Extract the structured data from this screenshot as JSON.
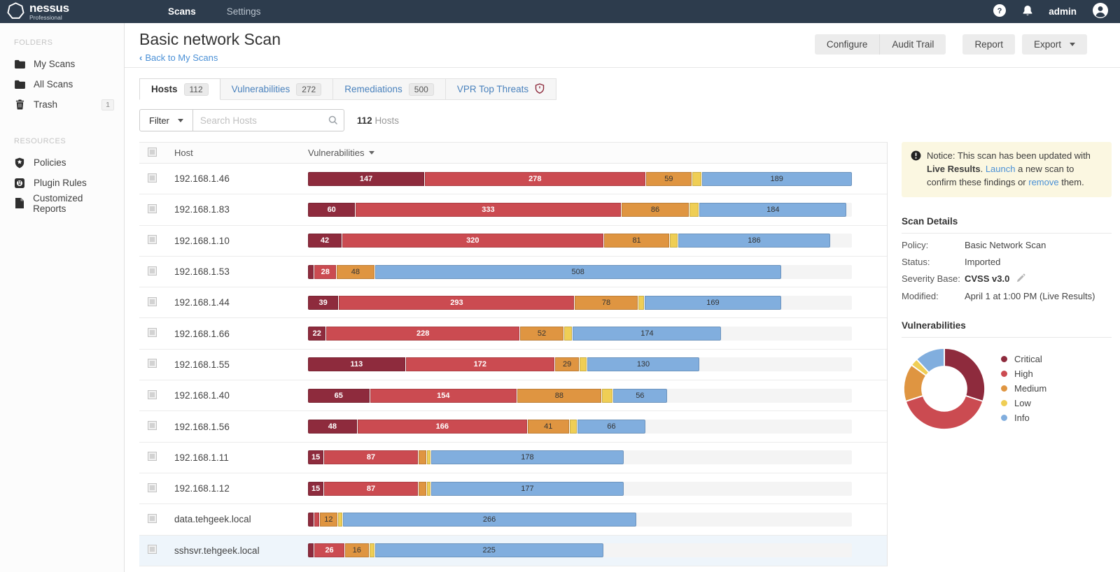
{
  "navbar": {
    "brand": {
      "name": "nessus",
      "sub": "Professional"
    },
    "items": [
      {
        "label": "Scans",
        "active": true
      },
      {
        "label": "Settings",
        "active": false
      }
    ],
    "user": "admin"
  },
  "sidebar": {
    "sections": [
      {
        "title": "FOLDERS",
        "items": [
          {
            "label": "My Scans",
            "icon": "folder",
            "badge": null
          },
          {
            "label": "All Scans",
            "icon": "folder",
            "badge": null
          },
          {
            "label": "Trash",
            "icon": "trash",
            "badge": "1"
          }
        ]
      },
      {
        "title": "RESOURCES",
        "items": [
          {
            "label": "Policies",
            "icon": "policies",
            "badge": null
          },
          {
            "label": "Plugin Rules",
            "icon": "plugin-rules",
            "badge": null
          },
          {
            "label": "Customized Reports",
            "icon": "report",
            "badge": null
          }
        ]
      }
    ]
  },
  "header": {
    "title": "Basic network Scan",
    "back_label": "Back to My Scans",
    "button_groups": [
      [
        {
          "label": "Configure"
        },
        {
          "label": "Audit Trail"
        }
      ],
      [
        {
          "label": "Report"
        }
      ],
      [
        {
          "label": "Export",
          "caret": true
        }
      ]
    ]
  },
  "tabs": [
    {
      "label": "Hosts",
      "badge": "112",
      "active": true
    },
    {
      "label": "Vulnerabilities",
      "badge": "272",
      "active": false
    },
    {
      "label": "Remediations",
      "badge": "500",
      "active": false
    },
    {
      "label": "VPR Top Threats",
      "icon": "vpr-shield",
      "active": false
    }
  ],
  "filter_bar": {
    "filter_label": "Filter",
    "search_placeholder": "Search Hosts",
    "count": "112",
    "count_suffix": "Hosts"
  },
  "table": {
    "columns": {
      "host": "Host",
      "vulnerabilities": "Vulnerabilities"
    },
    "rows": [
      {
        "host": "192.168.1.46",
        "highlight": false,
        "segments": [
          {
            "sev": "critical",
            "label": "147",
            "pct": 21.5
          },
          {
            "sev": "high",
            "label": "278",
            "pct": 40.6
          },
          {
            "sev": "medium",
            "label": "59",
            "pct": 8.6
          },
          {
            "sev": "low",
            "label": null,
            "pct": 1.7
          },
          {
            "sev": "info",
            "label": "189",
            "pct": 27.6
          }
        ]
      },
      {
        "host": "192.168.1.83",
        "highlight": false,
        "segments": [
          {
            "sev": "critical",
            "label": "60",
            "pct": 8.8
          },
          {
            "sev": "high",
            "label": "333",
            "pct": 48.8
          },
          {
            "sev": "medium",
            "label": "86",
            "pct": 12.6
          },
          {
            "sev": "low",
            "label": null,
            "pct": 1.8
          },
          {
            "sev": "info",
            "label": "184",
            "pct": 27.0
          }
        ]
      },
      {
        "host": "192.168.1.10",
        "highlight": false,
        "segments": [
          {
            "sev": "critical",
            "label": "42",
            "pct": 6.3
          },
          {
            "sev": "high",
            "label": "320",
            "pct": 48.1
          },
          {
            "sev": "medium",
            "label": "81",
            "pct": 12.2
          },
          {
            "sev": "low",
            "label": null,
            "pct": 1.5
          },
          {
            "sev": "info",
            "label": "186",
            "pct": 27.9
          }
        ]
      },
      {
        "host": "192.168.1.53",
        "highlight": false,
        "segments": [
          {
            "sev": "critical",
            "label": null,
            "pct": 1.2
          },
          {
            "sev": "high",
            "label": "28",
            "pct": 4.1
          },
          {
            "sev": "medium",
            "label": "48",
            "pct": 7.0
          },
          {
            "sev": "info",
            "label": "508",
            "pct": 74.7
          }
        ]
      },
      {
        "host": "192.168.1.44",
        "highlight": false,
        "segments": [
          {
            "sev": "critical",
            "label": "39",
            "pct": 5.7
          },
          {
            "sev": "high",
            "label": "293",
            "pct": 43.4
          },
          {
            "sev": "medium",
            "label": "78",
            "pct": 11.6
          },
          {
            "sev": "low",
            "label": null,
            "pct": 1.2
          },
          {
            "sev": "info",
            "label": "169",
            "pct": 25.1
          }
        ]
      },
      {
        "host": "192.168.1.66",
        "highlight": false,
        "segments": [
          {
            "sev": "critical",
            "label": "22",
            "pct": 3.4
          },
          {
            "sev": "high",
            "label": "228",
            "pct": 35.6
          },
          {
            "sev": "medium",
            "label": "52",
            "pct": 8.1
          },
          {
            "sev": "low",
            "label": null,
            "pct": 1.6
          },
          {
            "sev": "info",
            "label": "174",
            "pct": 27.3
          }
        ]
      },
      {
        "host": "192.168.1.55",
        "highlight": false,
        "segments": [
          {
            "sev": "critical",
            "label": "113",
            "pct": 18.0
          },
          {
            "sev": "high",
            "label": "172",
            "pct": 27.4
          },
          {
            "sev": "medium",
            "label": "29",
            "pct": 4.6
          },
          {
            "sev": "low",
            "label": null,
            "pct": 1.3
          },
          {
            "sev": "info",
            "label": "130",
            "pct": 20.7
          }
        ]
      },
      {
        "host": "192.168.1.40",
        "highlight": false,
        "segments": [
          {
            "sev": "critical",
            "label": "65",
            "pct": 11.4
          },
          {
            "sev": "high",
            "label": "154",
            "pct": 27.1
          },
          {
            "sev": "medium",
            "label": "88",
            "pct": 15.5
          },
          {
            "sev": "low",
            "label": null,
            "pct": 2.1
          },
          {
            "sev": "info",
            "label": "56",
            "pct": 9.9
          }
        ]
      },
      {
        "host": "192.168.1.56",
        "highlight": false,
        "segments": [
          {
            "sev": "critical",
            "label": "48",
            "pct": 9.1
          },
          {
            "sev": "high",
            "label": "166",
            "pct": 31.3
          },
          {
            "sev": "medium",
            "label": "41",
            "pct": 7.7
          },
          {
            "sev": "low",
            "label": null,
            "pct": 1.5
          },
          {
            "sev": "info",
            "label": "66",
            "pct": 12.4
          }
        ]
      },
      {
        "host": "192.168.1.11",
        "highlight": false,
        "segments": [
          {
            "sev": "critical",
            "label": "15",
            "pct": 3.0
          },
          {
            "sev": "high",
            "label": "87",
            "pct": 17.3
          },
          {
            "sev": "medium",
            "label": null,
            "pct": 1.6
          },
          {
            "sev": "low",
            "label": null,
            "pct": 0.8
          },
          {
            "sev": "info",
            "label": "178",
            "pct": 35.3
          }
        ]
      },
      {
        "host": "192.168.1.12",
        "highlight": false,
        "segments": [
          {
            "sev": "critical",
            "label": "15",
            "pct": 3.0
          },
          {
            "sev": "high",
            "label": "87",
            "pct": 17.3
          },
          {
            "sev": "medium",
            "label": null,
            "pct": 1.6
          },
          {
            "sev": "low",
            "label": null,
            "pct": 0.8
          },
          {
            "sev": "info",
            "label": "177",
            "pct": 35.3
          }
        ]
      },
      {
        "host": "data.tehgeek.local",
        "highlight": false,
        "segments": [
          {
            "sev": "critical",
            "label": null,
            "pct": 1.2
          },
          {
            "sev": "high",
            "label": null,
            "pct": 1.0
          },
          {
            "sev": "medium",
            "label": "12",
            "pct": 3.3
          },
          {
            "sev": "low",
            "label": null,
            "pct": 0.9
          },
          {
            "sev": "info",
            "label": "266",
            "pct": 53.9
          }
        ]
      },
      {
        "host": "sshsvr.tehgeek.local",
        "highlight": true,
        "segments": [
          {
            "sev": "critical",
            "label": null,
            "pct": 1.2
          },
          {
            "sev": "high",
            "label": "26",
            "pct": 5.6
          },
          {
            "sev": "medium",
            "label": "16",
            "pct": 4.5
          },
          {
            "sev": "low",
            "label": null,
            "pct": 1.0
          },
          {
            "sev": "info",
            "label": "225",
            "pct": 42.0
          }
        ]
      }
    ]
  },
  "notice": {
    "parts": [
      {
        "text": "Notice: This scan has been updated with "
      },
      {
        "text": "Live Results",
        "bold": true
      },
      {
        "text": ". "
      },
      {
        "text": "Launch",
        "link": true
      },
      {
        "text": " a new scan to confirm these findings or "
      },
      {
        "text": "remove",
        "link": true
      },
      {
        "text": " them."
      }
    ]
  },
  "scan_details": {
    "title": "Scan Details",
    "fields": [
      {
        "label": "Policy:",
        "value": "Basic Network Scan",
        "bold": false,
        "editable": false
      },
      {
        "label": "Status:",
        "value": "Imported",
        "bold": false,
        "editable": false
      },
      {
        "label": "Severity Base:",
        "value": "CVSS v3.0",
        "bold": true,
        "editable": true
      },
      {
        "label": "Modified:",
        "value": "April 1 at 1:00 PM (Live Results)",
        "bold": false,
        "editable": false
      }
    ]
  },
  "vulnerabilities_panel": {
    "title": "Vulnerabilities"
  },
  "severity_colors": {
    "critical": "#8e2b3d",
    "high": "#cb4b51",
    "medium": "#df9541",
    "low": "#efce55",
    "info": "#81aede"
  },
  "chart_data": [
    {
      "type": "bar",
      "stacked": true,
      "orientation": "horizontal",
      "title": "Vulnerabilities per host",
      "categories": [
        "192.168.1.46",
        "192.168.1.83",
        "192.168.1.10",
        "192.168.1.53",
        "192.168.1.44",
        "192.168.1.66",
        "192.168.1.55",
        "192.168.1.40",
        "192.168.1.56",
        "192.168.1.11",
        "192.168.1.12",
        "data.tehgeek.local",
        "sshsvr.tehgeek.local"
      ],
      "series": [
        {
          "name": "Critical",
          "color": "#8e2b3d",
          "values": [
            147,
            60,
            42,
            8,
            39,
            22,
            113,
            65,
            48,
            15,
            15,
            4,
            5
          ]
        },
        {
          "name": "High",
          "color": "#cb4b51",
          "values": [
            278,
            333,
            320,
            28,
            293,
            228,
            172,
            154,
            166,
            87,
            87,
            4,
            26
          ]
        },
        {
          "name": "Medium",
          "color": "#df9541",
          "values": [
            59,
            86,
            81,
            48,
            78,
            52,
            29,
            88,
            41,
            8,
            8,
            12,
            16
          ]
        },
        {
          "name": "Low",
          "color": "#efce55",
          "values": [
            12,
            12,
            10,
            0,
            8,
            10,
            8,
            12,
            8,
            4,
            4,
            4,
            5
          ]
        },
        {
          "name": "Info",
          "color": "#81aede",
          "values": [
            189,
            184,
            186,
            508,
            169,
            174,
            130,
            56,
            66,
            178,
            177,
            266,
            225
          ]
        }
      ]
    },
    {
      "type": "pie",
      "donut": true,
      "title": "Vulnerabilities",
      "labels": [
        "Critical",
        "High",
        "Medium",
        "Low",
        "Info"
      ],
      "values_pct": [
        30,
        40,
        15,
        3,
        12
      ],
      "colors": [
        "#8e2b3d",
        "#cb4b51",
        "#df9541",
        "#efce55",
        "#81aede"
      ],
      "legend_position": "right"
    }
  ]
}
